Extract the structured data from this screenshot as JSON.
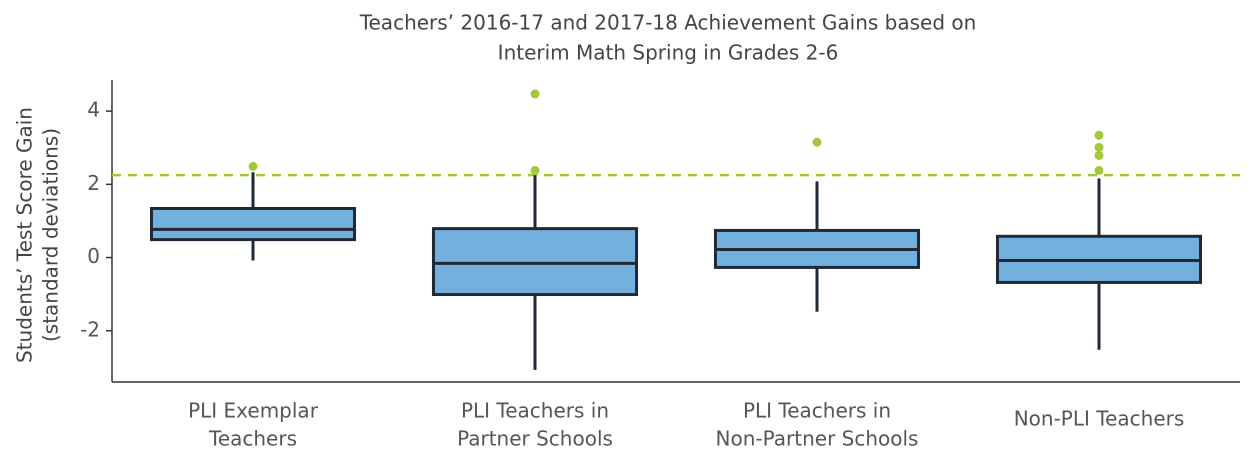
{
  "chart_data": {
    "type": "box",
    "title": [
      "Teachers’ 2016-17 and 2017-18 Achievement Gains based on",
      "Interim Math Spring in Grades 2-6"
    ],
    "y_label": [
      "Students’ Test Score Gain",
      "(standard deviations)"
    ],
    "categories": [
      [
        "PLI Exemplar",
        "Teachers"
      ],
      [
        "PLI Teachers in",
        "Partner Schools"
      ],
      [
        "PLI Teachers in",
        "Non-Partner Schools"
      ],
      [
        "Non-PLI Teachers"
      ]
    ],
    "whisker_low": [
      -0.08,
      -3.07,
      -1.48,
      -2.52
    ],
    "q1": [
      0.49,
      -1.01,
      -0.27,
      -0.68
    ],
    "median": [
      0.77,
      -0.16,
      0.22,
      -0.08
    ],
    "q3": [
      1.34,
      0.79,
      0.74,
      0.58
    ],
    "whisker_high": [
      2.33,
      2.25,
      2.08,
      2.16
    ],
    "outliers": [
      [
        2.49
      ],
      [
        2.38,
        4.47
      ],
      [
        3.15
      ],
      [
        3.34,
        3.01,
        2.79,
        2.38
      ]
    ],
    "box_color": "#74b0dd",
    "edge_color": "#1f2a36",
    "outlier_color": "#a3c93a",
    "reference_line": {
      "value": 2.25,
      "color": "#a3c93a"
    },
    "ylim": [
      -3.4,
      4.85
    ],
    "yticks": [
      -2,
      0,
      2,
      4
    ]
  }
}
